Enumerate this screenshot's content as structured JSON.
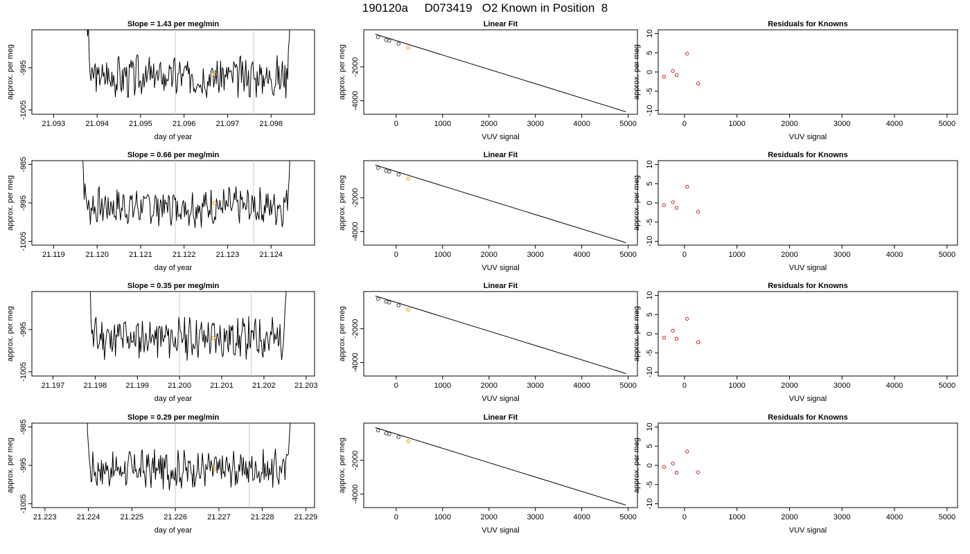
{
  "figure": {
    "title": "190120a     D073419   O2 Known in Position  8"
  },
  "chart_data": [
    {
      "panel": "trace",
      "type": "line",
      "row": 1,
      "title": "Slope =  1.43  per meg/min",
      "xlabel": "day of year",
      "ylabel": "approx. per meg",
      "xlim": [
        21.0925,
        21.099
      ],
      "ylim": [
        -1006,
        -986
      ],
      "xticks": [
        21.093,
        21.094,
        21.095,
        21.096,
        21.097,
        21.098
      ],
      "xtick_labels": [
        "21.093",
        "21.094",
        "21.095",
        "21.096",
        "21.097",
        "21.098"
      ],
      "yticks": [
        -995,
        -1005
      ],
      "ytick_labels": [
        "-995",
        "-1005"
      ],
      "trace_start": 21.0937,
      "trace_end": 21.0985,
      "vlines": [
        21.0958,
        21.0976
      ],
      "marker": {
        "x": 21.0967,
        "y": -996.5,
        "color": "#f5a623"
      },
      "seed": 3
    },
    {
      "panel": "fit",
      "type": "scatter",
      "row": 1,
      "title": "Linear Fit",
      "xlabel": "VUV signal",
      "ylabel": "approx. per meg",
      "xlim": [
        -700,
        5200
      ],
      "ylim": [
        -4800,
        200
      ],
      "xticks": [
        0,
        1000,
        2000,
        3000,
        4000,
        5000
      ],
      "xtick_labels": [
        "0",
        "1000",
        "2000",
        "3000",
        "4000",
        "5000"
      ],
      "yticks": [
        -2000,
        -4000
      ],
      "ytick_labels": [
        "-2000",
        "-4000"
      ],
      "line": {
        "x": [
          -450,
          4950
        ],
        "y": [
          -60,
          -4650
        ]
      },
      "points": {
        "x": [
          -390,
          -220,
          -150,
          50
        ],
        "y": [
          -230,
          -400,
          -450,
          -620
        ]
      },
      "highlight": {
        "x": 260,
        "y": -870,
        "color": "#f5a623"
      }
    },
    {
      "panel": "resid",
      "type": "scatter",
      "row": 1,
      "title": "Residuals for Knowns",
      "xlabel": "VUV signal",
      "ylabel": "approx. per meg",
      "xlim": [
        -500,
        5200
      ],
      "ylim": [
        -11,
        11
      ],
      "xticks": [
        0,
        1000,
        2000,
        3000,
        4000,
        5000
      ],
      "xtick_labels": [
        "0",
        "1000",
        "2000",
        "3000",
        "4000",
        "5000"
      ],
      "yticks": [
        10,
        5,
        0,
        -5,
        -10
      ],
      "ytick_labels": [
        "10",
        "5",
        "0",
        "-5",
        "-10"
      ],
      "points": {
        "x": [
          -390,
          -220,
          -150,
          50,
          260
        ],
        "y": [
          -1.2,
          0.3,
          -0.8,
          4.8,
          -3.0
        ]
      }
    },
    {
      "panel": "trace",
      "type": "line",
      "row": 2,
      "title": "Slope =  0.66  per meg/min",
      "xlabel": "day of year",
      "ylabel": "approx. per meg",
      "xlim": [
        21.1185,
        21.125
      ],
      "ylim": [
        -1006,
        -984
      ],
      "xticks": [
        21.119,
        21.12,
        21.121,
        21.122,
        21.123,
        21.124
      ],
      "xtick_labels": [
        "21.119",
        "21.120",
        "21.121",
        "21.122",
        "21.123",
        "21.124"
      ],
      "yticks": [
        -985,
        -995,
        -1005
      ],
      "ytick_labels": [
        "-985",
        "-995",
        "-1005"
      ],
      "trace_start": 21.1196,
      "trace_end": 21.1245,
      "vlines": [
        21.1218,
        21.1236
      ],
      "marker": {
        "x": 21.1227,
        "y": -995,
        "color": "#f5a623"
      },
      "seed": 7
    },
    {
      "panel": "fit",
      "type": "scatter",
      "row": 2,
      "title": "Linear Fit",
      "xlabel": "VUV signal",
      "ylabel": "approx. per meg",
      "xlim": [
        -700,
        5200
      ],
      "ylim": [
        -4800,
        200
      ],
      "xticks": [
        0,
        1000,
        2000,
        3000,
        4000,
        5000
      ],
      "xtick_labels": [
        "0",
        "1000",
        "2000",
        "3000",
        "4000",
        "5000"
      ],
      "yticks": [
        -2000,
        -4000
      ],
      "ytick_labels": [
        "-2000",
        "-4000"
      ],
      "line": {
        "x": [
          -450,
          4950
        ],
        "y": [
          -60,
          -4650
        ]
      },
      "points": {
        "x": [
          -390,
          -220,
          -150,
          50
        ],
        "y": [
          -230,
          -400,
          -450,
          -620
        ]
      },
      "highlight": {
        "x": 260,
        "y": -870,
        "color": "#f5a623"
      }
    },
    {
      "panel": "resid",
      "type": "scatter",
      "row": 2,
      "title": "Residuals for Knowns",
      "xlabel": "VUV signal",
      "ylabel": "approx. per meg",
      "xlim": [
        -500,
        5200
      ],
      "ylim": [
        -11,
        11
      ],
      "xticks": [
        0,
        1000,
        2000,
        3000,
        4000,
        5000
      ],
      "xtick_labels": [
        "0",
        "1000",
        "2000",
        "3000",
        "4000",
        "5000"
      ],
      "yticks": [
        10,
        5,
        0,
        -5,
        -10
      ],
      "ytick_labels": [
        "10",
        "5",
        "0",
        "-5",
        "-10"
      ],
      "points": {
        "x": [
          -390,
          -220,
          -150,
          50,
          260
        ],
        "y": [
          -0.6,
          0.2,
          -1.3,
          4.2,
          -2.3
        ]
      }
    },
    {
      "panel": "trace",
      "type": "line",
      "row": 3,
      "title": "Slope =  0.35  per meg/min",
      "xlabel": "day of year",
      "ylabel": "approx. per meg",
      "xlim": [
        21.1965,
        21.2032
      ],
      "ylim": [
        -1006,
        -986
      ],
      "xticks": [
        21.197,
        21.198,
        21.199,
        21.2,
        21.201,
        21.202,
        21.203
      ],
      "xtick_labels": [
        "21.197",
        "21.198",
        "21.199",
        "21.200",
        "21.201",
        "21.202",
        "21.203"
      ],
      "yticks": [
        -995,
        -1005
      ],
      "ytick_labels": [
        "-995",
        "-1005"
      ],
      "trace_start": 21.1978,
      "trace_end": 21.2026,
      "vlines": [
        21.2,
        21.2017
      ],
      "marker": {
        "x": 21.2008,
        "y": -997,
        "color": "#f5a623"
      },
      "seed": 11
    },
    {
      "panel": "fit",
      "type": "scatter",
      "row": 3,
      "title": "Linear Fit",
      "xlabel": "VUV signal",
      "ylabel": "approx. per meg",
      "xlim": [
        -700,
        5200
      ],
      "ylim": [
        -4800,
        200
      ],
      "xticks": [
        0,
        1000,
        2000,
        3000,
        4000,
        5000
      ],
      "xtick_labels": [
        "0",
        "1000",
        "2000",
        "3000",
        "4000",
        "5000"
      ],
      "yticks": [
        -2000,
        -4000
      ],
      "ytick_labels": [
        "-2000",
        "-4000"
      ],
      "line": {
        "x": [
          -450,
          4950
        ],
        "y": [
          -60,
          -4650
        ]
      },
      "points": {
        "x": [
          -390,
          -220,
          -150,
          50
        ],
        "y": [
          -230,
          -400,
          -450,
          -620
        ]
      },
      "highlight": {
        "x": 260,
        "y": -870,
        "color": "#f5a623"
      }
    },
    {
      "panel": "resid",
      "type": "scatter",
      "row": 3,
      "title": "Residuals for Knowns",
      "xlabel": "VUV signal",
      "ylabel": "approx. per meg",
      "xlim": [
        -500,
        5200
      ],
      "ylim": [
        -11,
        11
      ],
      "xticks": [
        0,
        1000,
        2000,
        3000,
        4000,
        5000
      ],
      "xtick_labels": [
        "0",
        "1000",
        "2000",
        "3000",
        "4000",
        "5000"
      ],
      "yticks": [
        10,
        5,
        0,
        -5,
        -10
      ],
      "ytick_labels": [
        "10",
        "5",
        "0",
        "-5",
        "-10"
      ],
      "points": {
        "x": [
          -390,
          -220,
          -150,
          50,
          260
        ],
        "y": [
          -1.0,
          0.8,
          -1.3,
          3.9,
          -2.2
        ]
      }
    },
    {
      "panel": "trace",
      "type": "line",
      "row": 4,
      "title": "Slope =  0.29  per meg/min",
      "xlabel": "day of year",
      "ylabel": "approx. per meg",
      "xlim": [
        21.2227,
        21.2292
      ],
      "ylim": [
        -1006,
        -984
      ],
      "xticks": [
        21.223,
        21.224,
        21.225,
        21.226,
        21.227,
        21.228,
        21.229
      ],
      "xtick_labels": [
        "21.223",
        "21.224",
        "21.225",
        "21.226",
        "21.227",
        "21.228",
        "21.229"
      ],
      "yticks": [
        -985,
        -995,
        -1005
      ],
      "ytick_labels": [
        "-985",
        "-995",
        "-1005"
      ],
      "trace_start": 21.2239,
      "trace_end": 21.2287,
      "vlines": [
        21.226,
        21.2277
      ],
      "marker": {
        "x": 21.2269,
        "y": -996,
        "color": "#f5a623"
      },
      "seed": 17
    },
    {
      "panel": "fit",
      "type": "scatter",
      "row": 4,
      "title": "Linear Fit",
      "xlabel": "VUV signal",
      "ylabel": "approx. per meg",
      "xlim": [
        -700,
        5200
      ],
      "ylim": [
        -4800,
        200
      ],
      "xticks": [
        0,
        1000,
        2000,
        3000,
        4000,
        5000
      ],
      "xtick_labels": [
        "0",
        "1000",
        "2000",
        "3000",
        "4000",
        "5000"
      ],
      "yticks": [
        -2000,
        -4000
      ],
      "ytick_labels": [
        "-2000",
        "-4000"
      ],
      "line": {
        "x": [
          -450,
          4950
        ],
        "y": [
          -60,
          -4650
        ]
      },
      "points": {
        "x": [
          -390,
          -220,
          -150,
          50
        ],
        "y": [
          -230,
          -400,
          -450,
          -620
        ]
      },
      "highlight": {
        "x": 260,
        "y": -870,
        "color": "#f5a623"
      }
    },
    {
      "panel": "resid",
      "type": "scatter",
      "row": 4,
      "title": "Residuals for Knowns",
      "xlabel": "VUV signal",
      "ylabel": "approx. per meg",
      "xlim": [
        -500,
        5200
      ],
      "ylim": [
        -11,
        11
      ],
      "xticks": [
        0,
        1000,
        2000,
        3000,
        4000,
        5000
      ],
      "xtick_labels": [
        "0",
        "1000",
        "2000",
        "3000",
        "4000",
        "5000"
      ],
      "yticks": [
        10,
        5,
        0,
        -5,
        -10
      ],
      "ytick_labels": [
        "10",
        "5",
        "0",
        "-5",
        "-10"
      ],
      "points": {
        "x": [
          -390,
          -220,
          -150,
          50,
          260
        ],
        "y": [
          -0.4,
          0.5,
          -1.9,
          3.6,
          -1.8
        ]
      }
    }
  ],
  "colors": {
    "trace": "#000000",
    "residual_point": "#cc2222",
    "fit_point": "#444444",
    "highlight": "#f5a623",
    "vline": "#c8c8c8"
  }
}
